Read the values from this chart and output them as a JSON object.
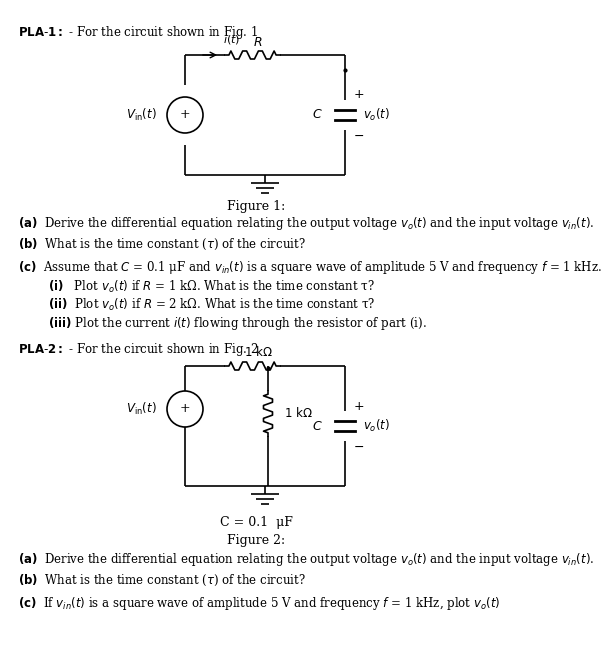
{
  "title": "PLA-1: - For the circuit shown in Fig. 1",
  "fig1_caption": "Figure 1:",
  "fig2_caption": "Figure 2:",
  "fig2_label": "C = 0.1  μF",
  "pla2_title": "PLA-2: - For the circuit shown in Fig. 2",
  "questions_pla1": [
    "(a)  Derive the differential equation relating the output voltage $v_o(t)$ and the input voltage $v_{in}(t)$.",
    "(b)  What is the time constant (τ) of the circuit?",
    "(c)  Assume that $C$ = 0.1 μF and $v_{in}(t)$ is a square wave of amplitude 5 V and frequency $f$ = 1 kHz."
  ],
  "sub_questions_pla1": [
    "(i)   Plot $v_o(t)$ if $R$ = 1 kΩ. What is the time constant τ?",
    "(ii)  Plot $v_o(t)$ if $R$ = 2 kΩ. What is the time constant τ?",
    "(iii) Plot the current $i(t)$ flowing through the resistor of part (i)."
  ],
  "questions_pla2": [
    "(a)  Derive the differential equation relating the output voltage $v_o(t)$ and the input voltage $v_{in}(t)$.",
    "(b)  What is the time constant (τ) of the circuit?",
    "(c)  If $v_{in}(t)$ is a square wave of amplitude 5 V and frequency $f$ = 1 kHz, plot $v_o(t)$"
  ],
  "bg_color": "#ffffff",
  "text_color": "#000000"
}
